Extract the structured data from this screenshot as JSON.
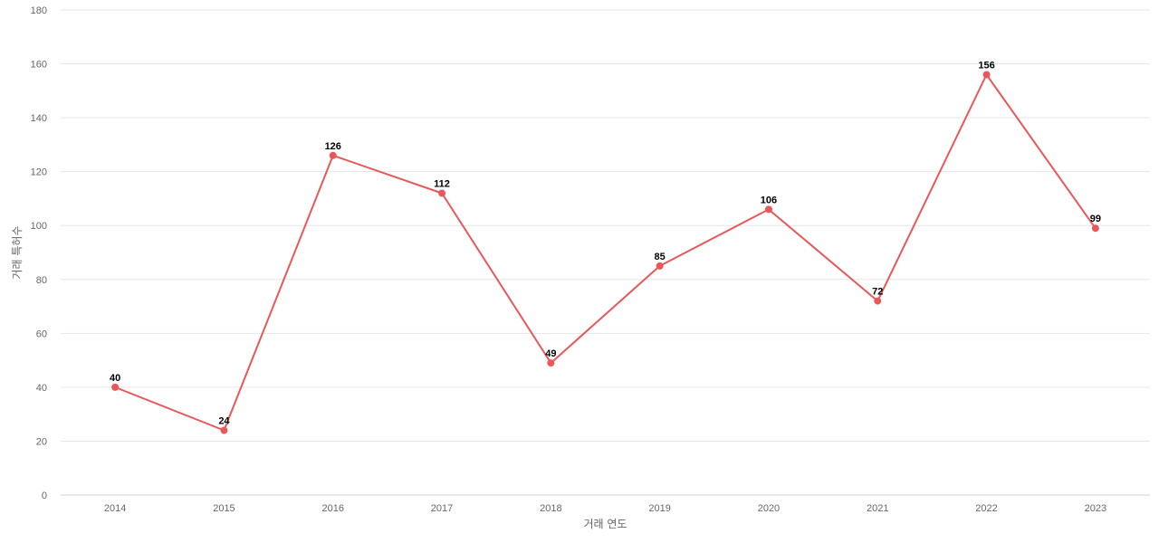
{
  "chart_data": {
    "type": "line",
    "title": "",
    "xlabel": "거래 연도",
    "ylabel": "거래 특허수",
    "categories": [
      "2014",
      "2015",
      "2016",
      "2017",
      "2018",
      "2019",
      "2020",
      "2021",
      "2022",
      "2023"
    ],
    "series": [
      {
        "values": [
          40,
          24,
          126,
          112,
          49,
          85,
          106,
          72,
          156,
          99
        ],
        "color": "#e8585a"
      }
    ],
    "ylim": [
      0,
      180
    ],
    "yticks": [
      0,
      20,
      40,
      60,
      80,
      100,
      120,
      140,
      160,
      180
    ],
    "grid": true,
    "legend": "none",
    "data_labels": true
  }
}
